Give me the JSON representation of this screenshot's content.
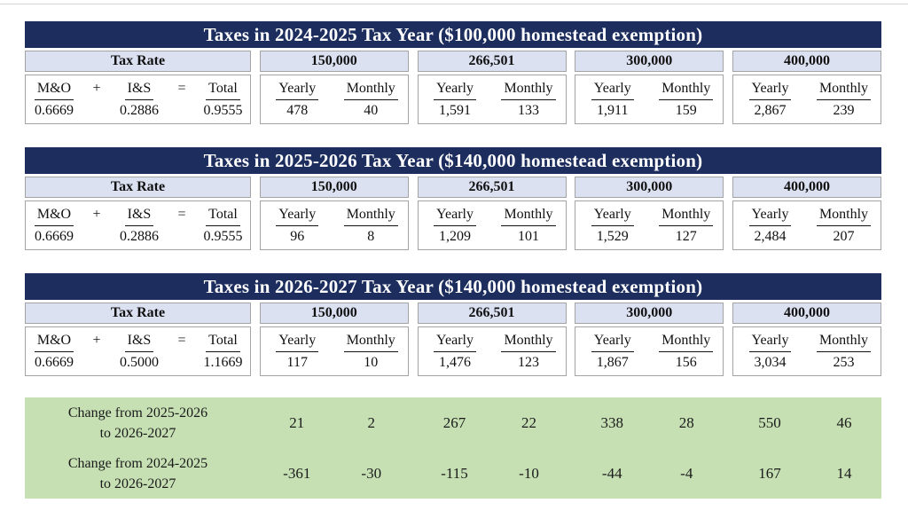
{
  "colors": {
    "title_bar_navy": "#1c2d5e",
    "header_blue": "#dce1f2",
    "summary_green": "#c6e0b4",
    "border_gray": "#a3a3a3"
  },
  "shared": {
    "tax_rate_label": "Tax Rate",
    "mo_label": "M&O",
    "plus": "+",
    "is_label": "I&S",
    "equals": "=",
    "total_label": "Total",
    "yearly_label": "Yearly",
    "monthly_label": "Monthly",
    "home_values": [
      "150,000",
      "266,501",
      "300,000",
      "400,000"
    ]
  },
  "tables": [
    {
      "title": "Taxes in 2024-2025 Tax Year ($100,000 homestead exemption)",
      "rate": {
        "mo": "0.6669",
        "is": "0.2886",
        "total": "0.9555"
      },
      "cols": [
        {
          "yearly": "478",
          "monthly": "40"
        },
        {
          "yearly": "1,591",
          "monthly": "133"
        },
        {
          "yearly": "1,911",
          "monthly": "159"
        },
        {
          "yearly": "2,867",
          "monthly": "239"
        }
      ]
    },
    {
      "title": "Taxes in 2025-2026 Tax Year ($140,000 homestead exemption)",
      "rate": {
        "mo": "0.6669",
        "is": "0.2886",
        "total": "0.9555"
      },
      "cols": [
        {
          "yearly": "96",
          "monthly": "8"
        },
        {
          "yearly": "1,209",
          "monthly": "101"
        },
        {
          "yearly": "1,529",
          "monthly": "127"
        },
        {
          "yearly": "2,484",
          "monthly": "207"
        }
      ]
    },
    {
      "title": "Taxes in 2026-2027 Tax Year ($140,000 homestead exemption)",
      "rate": {
        "mo": "0.6669",
        "is": "0.5000",
        "total": "1.1669"
      },
      "cols": [
        {
          "yearly": "117",
          "monthly": "10"
        },
        {
          "yearly": "1,476",
          "monthly": "123"
        },
        {
          "yearly": "1,867",
          "monthly": "156"
        },
        {
          "yearly": "3,034",
          "monthly": "253"
        }
      ]
    }
  ],
  "changes": {
    "rows": [
      {
        "line1": "Change from 2025-2026",
        "line2": "to 2026-2027",
        "values": [
          "21",
          "2",
          "267",
          "22",
          "338",
          "28",
          "550",
          "46"
        ]
      },
      {
        "line1": "Change from 2024-2025",
        "line2": "to 2026-2027",
        "values": [
          "-361",
          "-30",
          "-115",
          "-10",
          "-44",
          "-4",
          "167",
          "14"
        ]
      }
    ]
  }
}
